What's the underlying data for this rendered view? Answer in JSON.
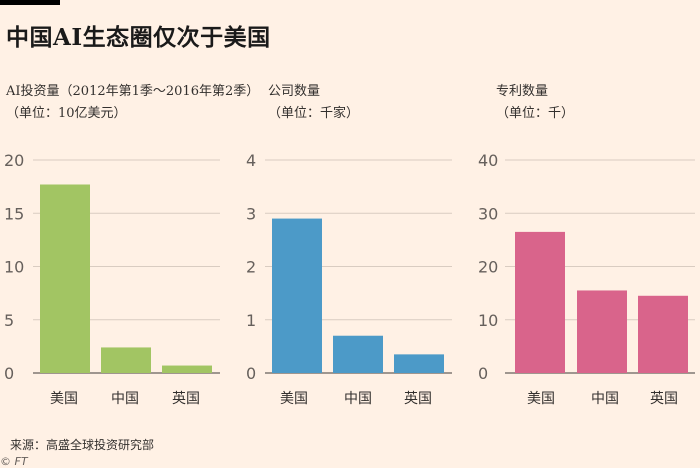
{
  "title": "中国AI生态圈仅次于美国",
  "source": "来源：高盛全球投资研究部",
  "credit": "© FT",
  "chart_data": [
    {
      "type": "bar",
      "title": "AI投资量（2012年第1季～2016年第2季）",
      "subtitle": "（单位：10亿美元）",
      "categories": [
        "美国",
        "中国",
        "英国"
      ],
      "values": [
        17.7,
        2.4,
        0.7
      ],
      "ylim": [
        0,
        20
      ],
      "yticks": [
        0,
        5,
        10,
        15,
        20
      ],
      "color": "#a2c563"
    },
    {
      "type": "bar",
      "title": "公司数量",
      "subtitle": "（单位：千家）",
      "categories": [
        "美国",
        "中国",
        "英国"
      ],
      "values": [
        2.9,
        0.7,
        0.35
      ],
      "ylim": [
        0,
        4
      ],
      "yticks": [
        0,
        1,
        2,
        3,
        4
      ],
      "color": "#4c9ac8"
    },
    {
      "type": "bar",
      "title": "专利数量",
      "subtitle": "（单位：千）",
      "categories": [
        "美国",
        "中国",
        "英国"
      ],
      "values": [
        26.5,
        15.5,
        14.5
      ],
      "ylim": [
        0,
        40
      ],
      "yticks": [
        0,
        10,
        20,
        30,
        40
      ],
      "color": "#d9648b"
    }
  ]
}
